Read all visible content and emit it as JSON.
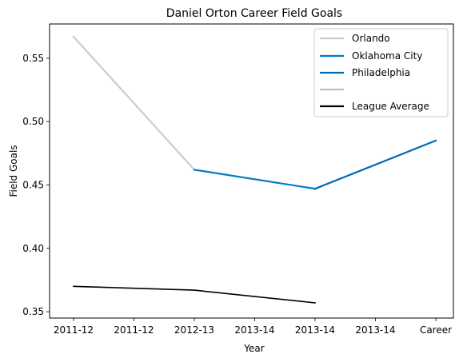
{
  "chart_data": {
    "type": "line",
    "title": "Daniel Orton Career Field Goals",
    "xlabel": "Year",
    "ylabel": "Field Goals",
    "categories": [
      "2011-12",
      "2011-12",
      "2012-13",
      "2013-14",
      "2013-14",
      "2013-14",
      "Career"
    ],
    "ylim": [
      0.345,
      0.577
    ],
    "yticks": [
      0.35,
      0.4,
      0.45,
      0.5,
      0.55
    ],
    "ytick_labels": [
      "0.35",
      "0.40",
      "0.45",
      "0.50",
      "0.55"
    ],
    "grid": false,
    "legend_position": "top-right",
    "series": [
      {
        "name": "Orlando",
        "color": "#c4ced4",
        "points": [
          [
            0,
            0.567
          ],
          [
            2,
            0.462
          ]
        ]
      },
      {
        "name": "Oklahoma City",
        "color": "#007ac1",
        "points": [
          [
            2,
            0.462
          ],
          [
            4,
            0.447
          ]
        ]
      },
      {
        "name": "Philadelphia",
        "color": "#006bb6",
        "points": [
          [
            4,
            0.447
          ],
          [
            6,
            0.485
          ]
        ]
      },
      {
        "name": "",
        "color": "#bec0c2",
        "points": []
      },
      {
        "name": "League Average",
        "color": "#000000",
        "points": [
          [
            0,
            0.37
          ],
          [
            2,
            0.367
          ],
          [
            4,
            0.357
          ]
        ]
      }
    ]
  }
}
